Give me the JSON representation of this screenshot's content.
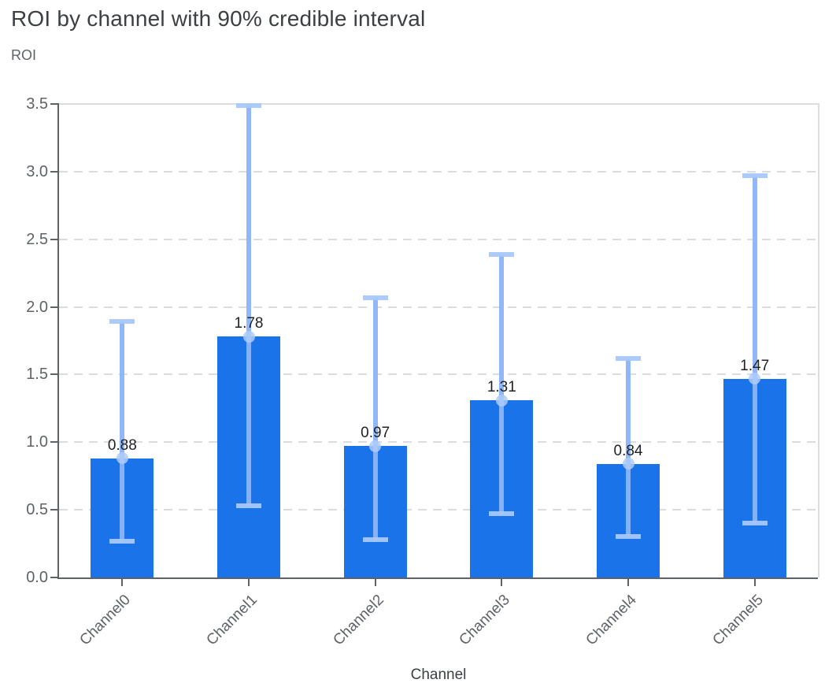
{
  "chart_data": {
    "type": "bar",
    "title": "ROI by channel with 90% credible interval",
    "ylabel": "ROI",
    "xlabel": "Channel",
    "categories": [
      "Channel0",
      "Channel1",
      "Channel2",
      "Channel3",
      "Channel4",
      "Channel5"
    ],
    "values": [
      0.88,
      1.78,
      0.97,
      1.31,
      0.84,
      1.47
    ],
    "value_labels": [
      "0.88",
      "1.78",
      "0.97",
      "1.31",
      "0.84",
      "1.47"
    ],
    "error_low": [
      0.27,
      0.53,
      0.28,
      0.47,
      0.3,
      0.4
    ],
    "error_high": [
      1.89,
      3.49,
      2.07,
      2.39,
      1.62,
      2.97
    ],
    "error_meaning": "90% credible interval",
    "ylim": [
      0,
      3.5
    ],
    "ytick_labels": [
      "0.0",
      "0.5",
      "1.0",
      "1.5",
      "2.0",
      "2.5",
      "3.0",
      "3.5"
    ],
    "grid": "horizontal dashed, solid top and right border",
    "legend_position": "none",
    "colors": {
      "bar": "#1a73e8",
      "error_line": "#8ab4f8",
      "error_cap": "#a8c7fa",
      "error_dot": "#aecbfa",
      "grid_line": "#dadce0",
      "axis_line": "#5f6368",
      "title_text": "#3c4043",
      "axis_title_text": "#5f6368",
      "tick_text": "#5f6368",
      "value_text": "#202124"
    }
  }
}
